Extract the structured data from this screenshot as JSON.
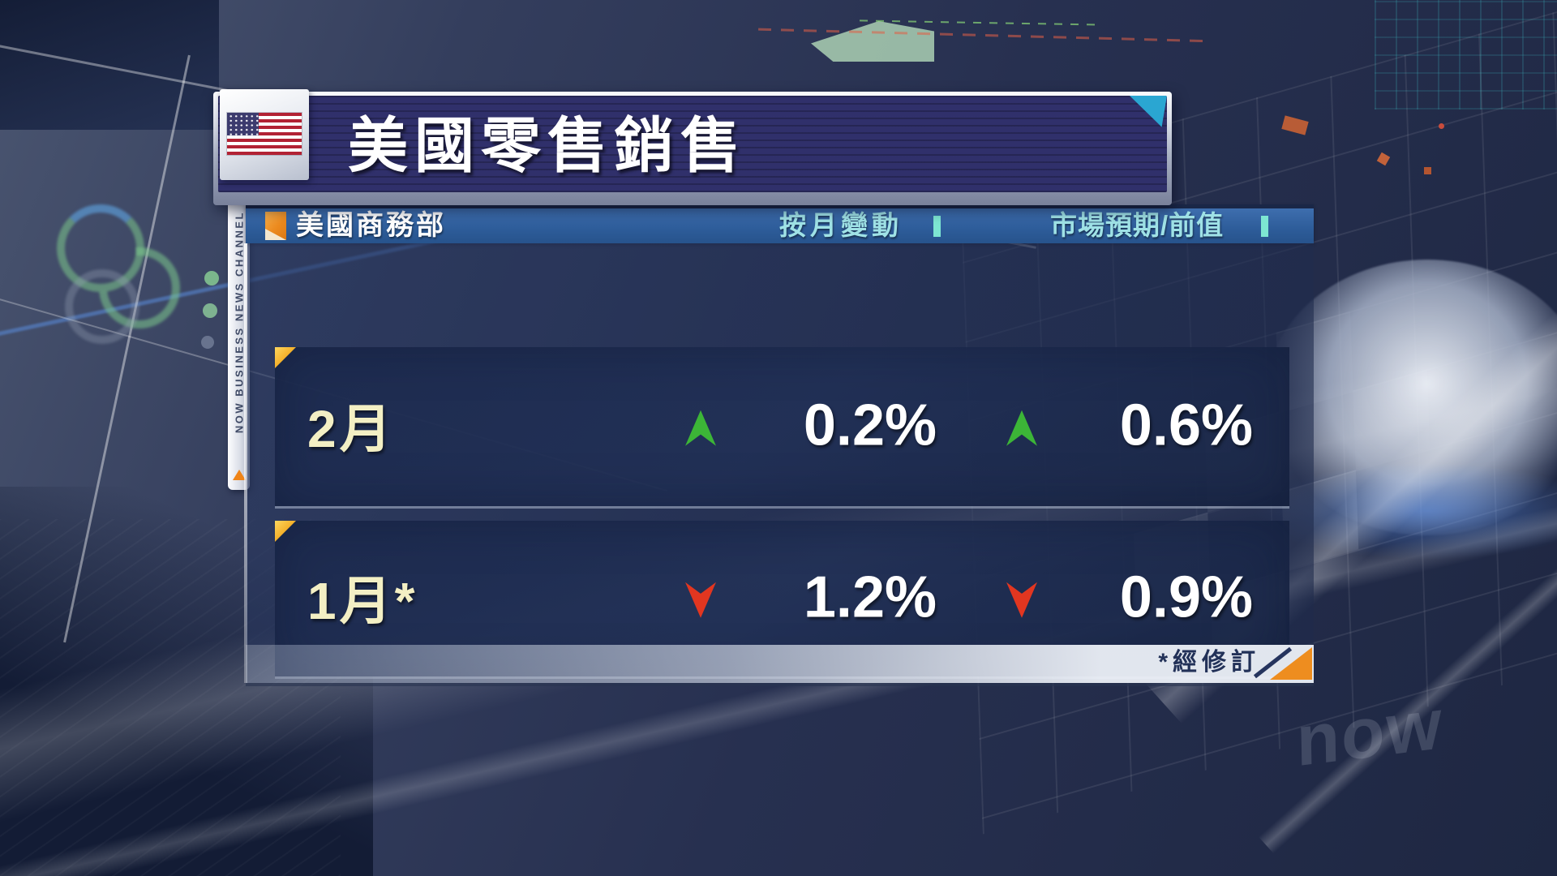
{
  "background": {
    "watermark_text": "now"
  },
  "channel_strip": {
    "label": "NOW BUSINESS NEWS CHANNEL"
  },
  "chart_data": {
    "type": "table",
    "title": "美國零售銷售",
    "source": "美國商務部",
    "columns": [
      "按月變動",
      "市場預期/前值"
    ],
    "rows": [
      {
        "month": "2月",
        "mom_display": "0.2%",
        "mom_value": 0.2,
        "mom_dir": "up",
        "expect_display": "0.6%",
        "expect_value": 0.6,
        "expect_dir": "up"
      },
      {
        "month": "1月*",
        "mom_display": "1.2%",
        "mom_value": -1.2,
        "mom_dir": "down",
        "expect_display": "0.9%",
        "expect_value": -0.9,
        "expect_dir": "down"
      }
    ],
    "footnote": "*經修訂",
    "legend_position": "none",
    "grid": false
  },
  "colors": {
    "up_green": "#3cb537",
    "down_red": "#e23620",
    "label_yellow": "#f3efc4",
    "accent_cyan": "#7de6d2",
    "corner_orange": "#ee8d1f",
    "footnote_navy": "#223158",
    "title_bg": "#30306b",
    "subheader_bg": "#2d5c99",
    "row_bg": "#22325a",
    "flag_red": "#b22234",
    "flag_blue": "#3c3b6e",
    "cyan_corner": "#2aa6d2"
  }
}
